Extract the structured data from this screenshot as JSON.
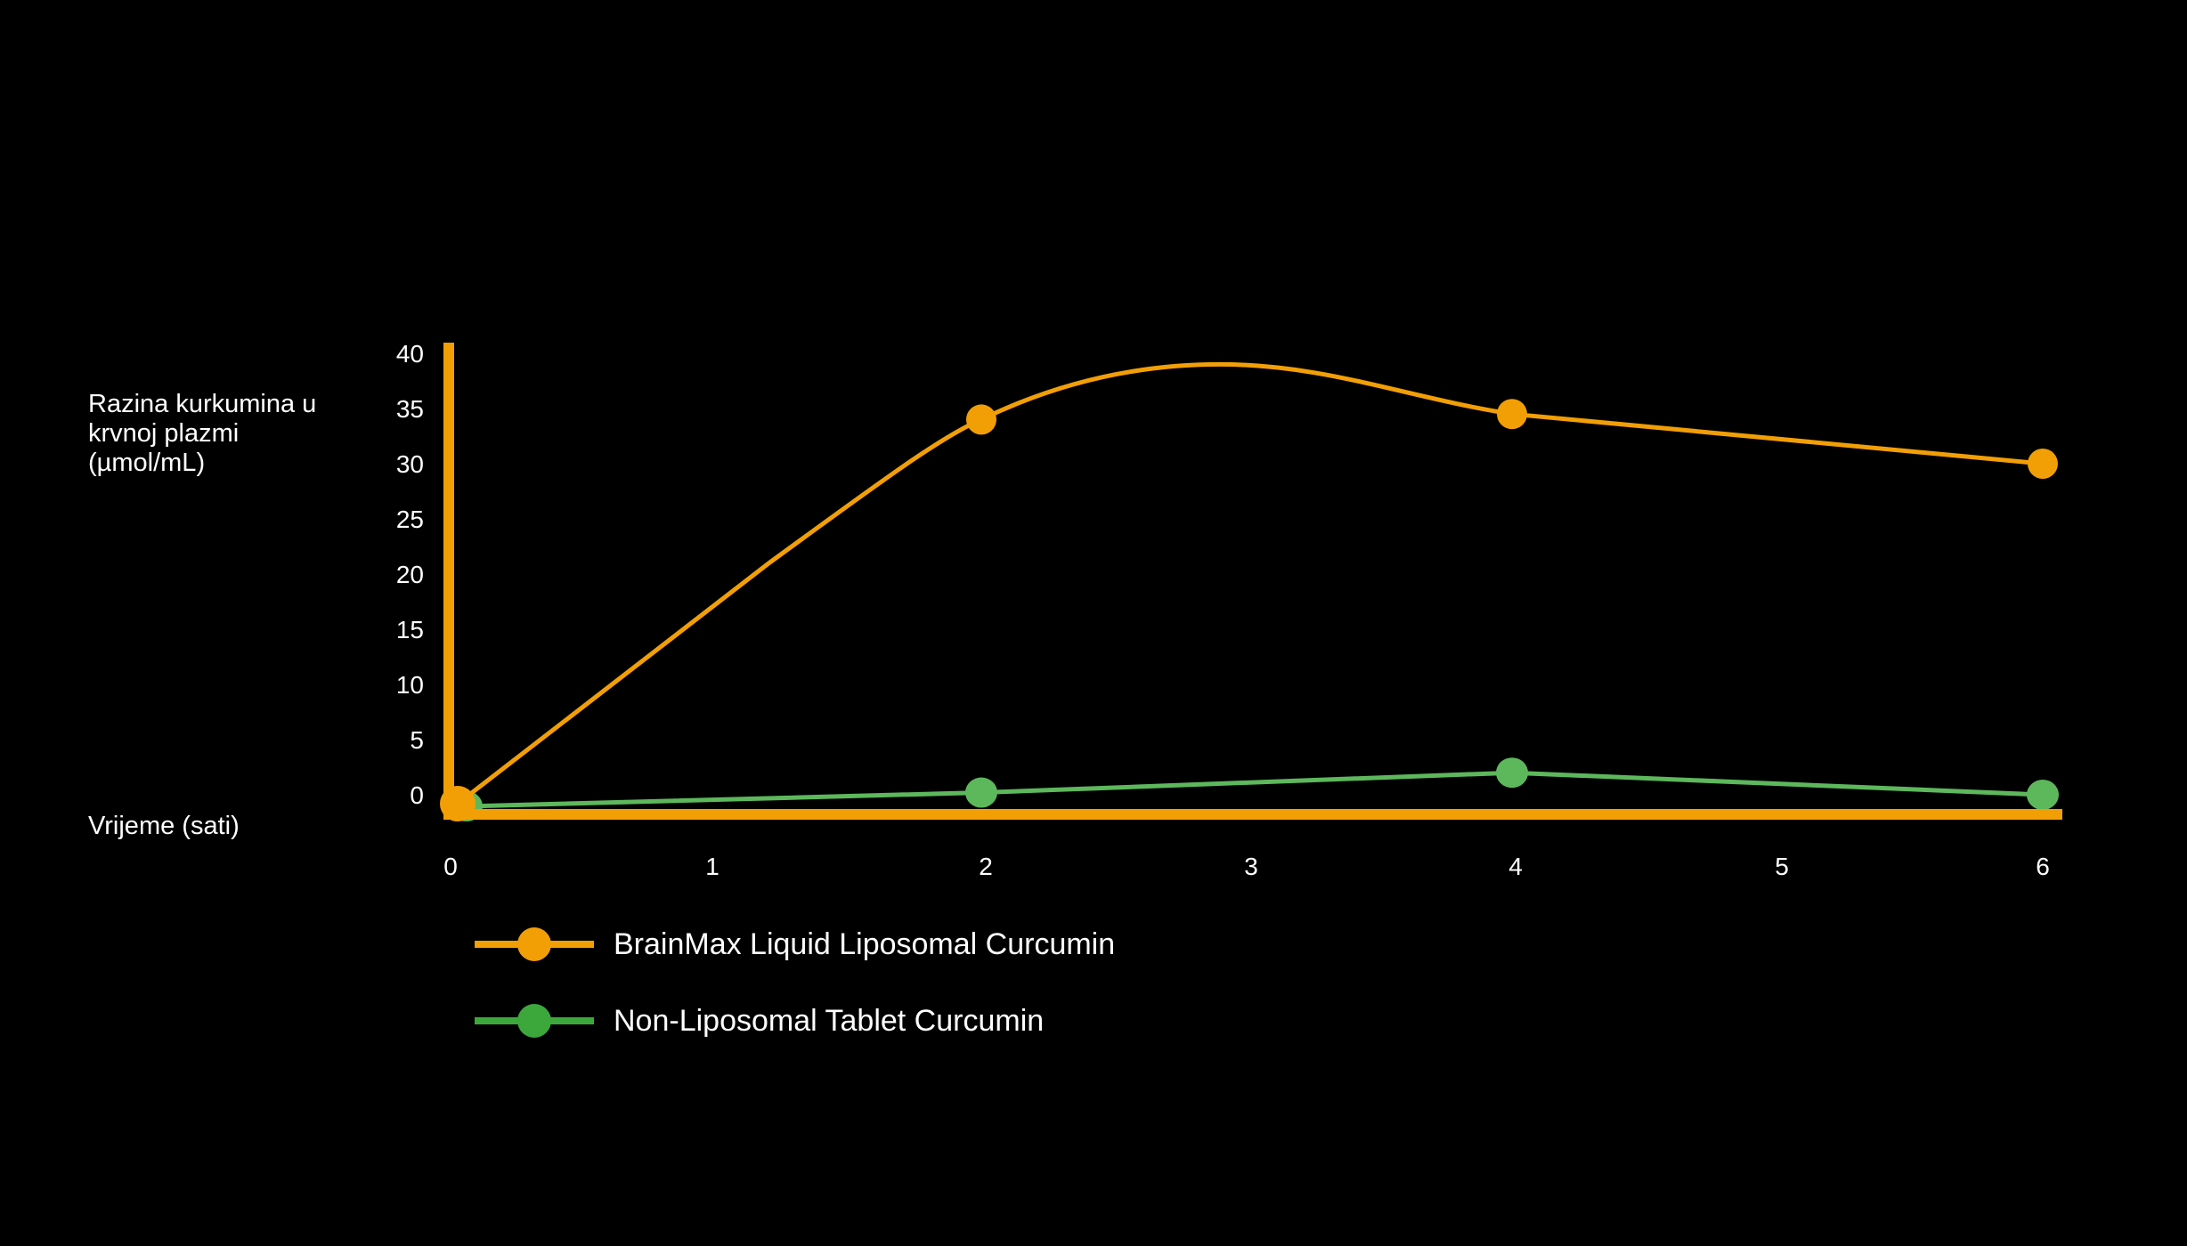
{
  "chart_data": {
    "type": "line",
    "title": "",
    "xlabel": "Vrijeme (sati)",
    "ylabel": "Razina kurkumina u krvnoj plazmi (µmol/mL)",
    "x": [
      0,
      2,
      4,
      6
    ],
    "x_ticks": [
      "0",
      "1",
      "2",
      "3",
      "4",
      "5",
      "6"
    ],
    "y_ticks": [
      "0",
      "5",
      "10",
      "15",
      "20",
      "25",
      "30",
      "35",
      "40"
    ],
    "xlim": [
      0,
      6
    ],
    "ylim": [
      0,
      40
    ],
    "grid": false,
    "legend_position": "bottom-left",
    "series": [
      {
        "name": "BrainMax Liquid Liposomal Curcumin",
        "color": "#F29F05",
        "values": [
          0,
          34,
          34.5,
          30
        ],
        "smooth": true,
        "annotation_peak": {
          "x": 2.9,
          "y": 39
        }
      },
      {
        "name": "Non-Liposomal Tablet Curcumin",
        "color": "#5DB85C",
        "values": [
          0,
          0.2,
          2,
          0
        ]
      }
    ]
  },
  "labels": {
    "ylabel": "Razina kurkumina u\nkrvnoj plazmi\n(µmol/mL)",
    "xlabel": "Vrijeme (sati)"
  },
  "legend": [
    {
      "label": "BrainMax Liquid Liposomal Curcumin",
      "color": "#F29F05"
    },
    {
      "label": "Non-Liposomal Tablet Curcumin",
      "color": "#3CA83C"
    }
  ],
  "colors": {
    "background": "#000000",
    "axis": "#F29F05",
    "text": "#FFFFFF"
  }
}
